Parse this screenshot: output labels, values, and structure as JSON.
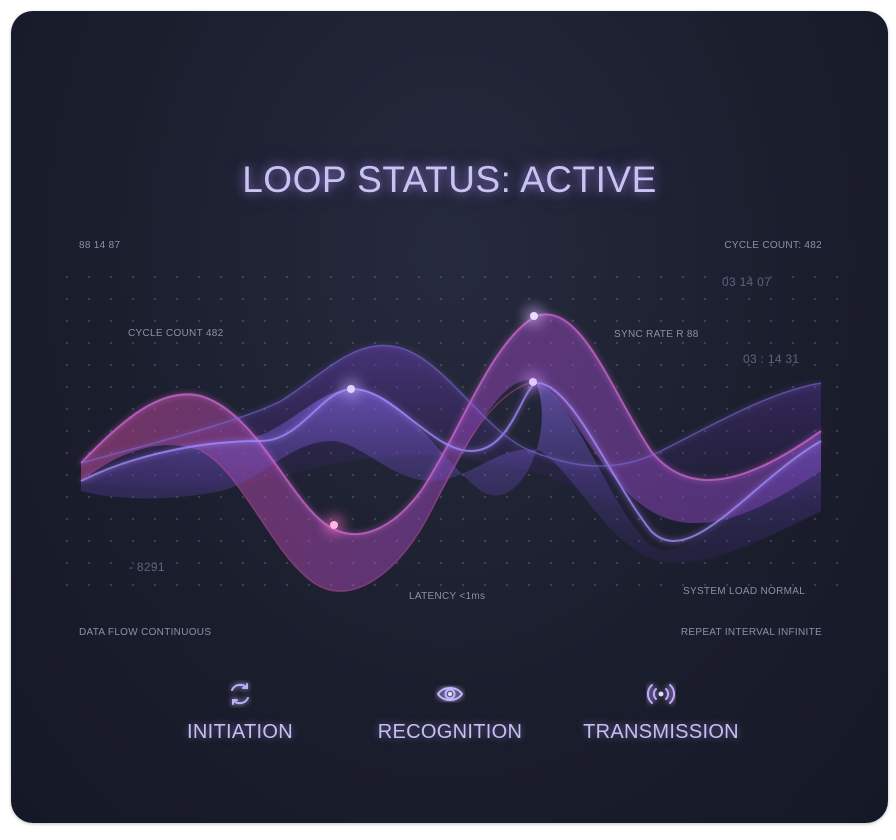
{
  "title": "LOOP STATUS: ACTIVE",
  "readouts": {
    "top_left": "88 14 87",
    "top_right": "CYCLE COUNT: 482",
    "right_upper": "03 14 07",
    "inner_left": "CYCLE COUNT 482",
    "sync_rate": "SYNC RATE R 88",
    "right_mid": "03 : 14 31",
    "lower_left": "- 8291",
    "latency": "LATENCY <1ms",
    "system_load": "SYSTEM LOAD NORMAL",
    "data_flow": "DATA FLOW CONTINUOUS",
    "repeat_interval": "REPEAT INTERVAL INFINITE"
  },
  "steps": [
    {
      "label": "INITIATION",
      "icon": "refresh-cycle-icon"
    },
    {
      "label": "RECOGNITION",
      "icon": "eye-icon"
    },
    {
      "label": "TRANSMISSION",
      "icon": "broadcast-icon"
    }
  ],
  "colors": {
    "background": "#1b1e2d",
    "glow_violet": "#9b7cff",
    "glow_magenta": "#d04fc0",
    "text": "#c9c3f2"
  }
}
